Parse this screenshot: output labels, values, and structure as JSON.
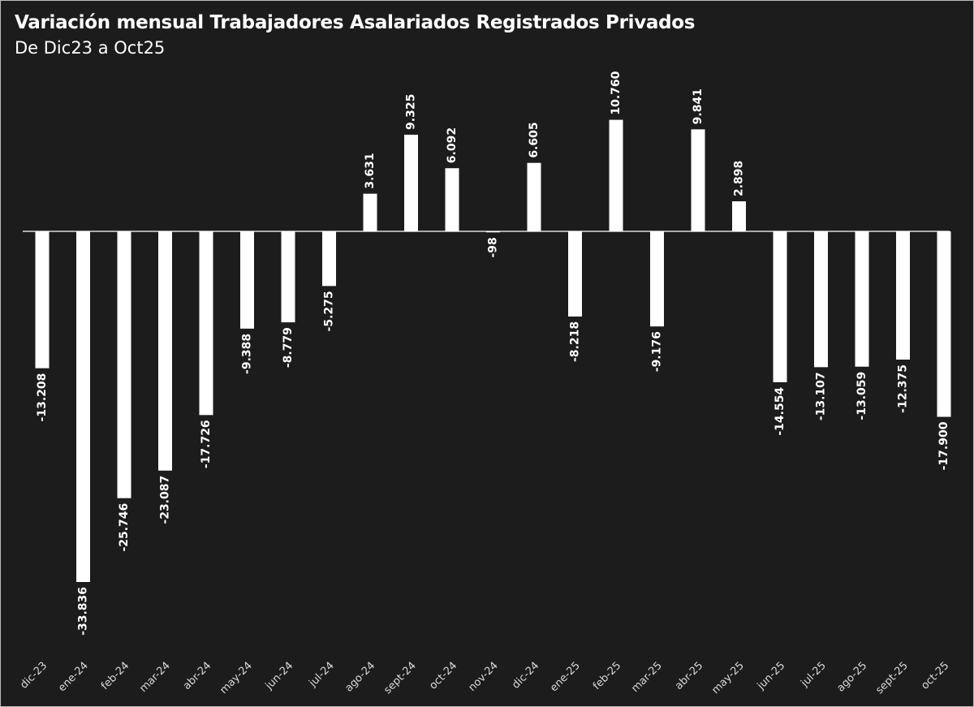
{
  "chart_data": {
    "type": "bar",
    "title": "Variación mensual Trabajadores Asalariados Registrados Privados",
    "subtitle": "De Dic23 a Oct25",
    "xlabel": "",
    "ylabel": "",
    "ylim": [
      -33836,
      10760
    ],
    "grid": false,
    "legend": "none",
    "categories": [
      "dic-23",
      "ene-24",
      "feb-24",
      "mar-24",
      "abr-24",
      "may-24",
      "jun-24",
      "jul-24",
      "ago-24",
      "sept-24",
      "oct-24",
      "nov-24",
      "dic-24",
      "ene-25",
      "feb-25",
      "mar-25",
      "abr-25",
      "may-25",
      "jun-25",
      "jul-25",
      "ago-25",
      "sept-25",
      "oct-25"
    ],
    "values": [
      -13208,
      -33836,
      -25746,
      -23087,
      -17726,
      -9388,
      -8779,
      -5275,
      3631,
      9325,
      6092,
      -98,
      6605,
      -8218,
      10760,
      -9176,
      9841,
      2898,
      -14554,
      -13107,
      -13059,
      -12375,
      -17900
    ],
    "labels": [
      "-13.208",
      "-33.836",
      "-25.746",
      "-23.087",
      "-17.726",
      "-9.388",
      "-8.779",
      "-5.275",
      "3.631",
      "9.325",
      "6.092",
      "-98",
      "6.605",
      "-8.218",
      "10.760",
      "-9.176",
      "9.841",
      "2.898",
      "-14.554",
      "-13.107",
      "-13.059",
      "-12.375",
      "-17.900"
    ],
    "colors": {
      "background": "#1c1c1c",
      "bar": "#ffffff",
      "text": "#ffffff",
      "axis": "#ffffff",
      "tick": "#d9d9d9"
    }
  }
}
